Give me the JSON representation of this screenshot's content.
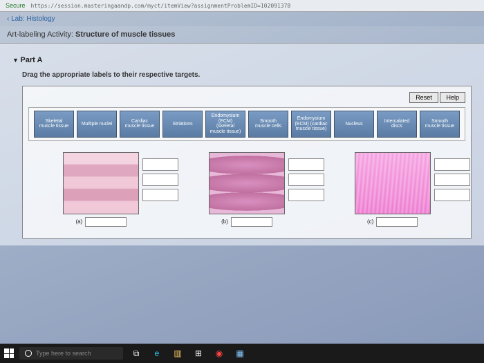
{
  "address_bar": {
    "secure_label": "Secure",
    "url": "https://session.masteringaandp.com/myct/itemView?assignmentProblemID=102091378"
  },
  "breadcrumb": {
    "back": "‹ Lab: Histology"
  },
  "page_title": {
    "prefix": "Art-labeling Activity:",
    "main": "Structure of muscle tissues"
  },
  "part": {
    "header": "Part A",
    "instruction": "Drag the appropriate labels to their respective targets."
  },
  "buttons": {
    "reset": "Reset",
    "help": "Help"
  },
  "labels": [
    "Skeletal muscle tissue",
    "Multiple nuclei",
    "Cardiac muscle tissue",
    "Striations",
    "Endomysium (ECM) (skeletal muscle tissue)",
    "Smooth muscle cells",
    "Endomysium (ECM) (cardiac muscle tissue)",
    "Nucleus",
    "Intercalated discs",
    "Smooth muscle tissue"
  ],
  "figures": {
    "a": "(a)",
    "b": "(b)",
    "c": "(c)"
  },
  "taskbar": {
    "search_placeholder": "Type here to search"
  },
  "colors": {
    "label_bg_top": "#7a9cc4",
    "label_bg_bottom": "#5a7ca4",
    "tissue_pink": "#e0a8c0",
    "tissue_purple": "#c878a8"
  }
}
